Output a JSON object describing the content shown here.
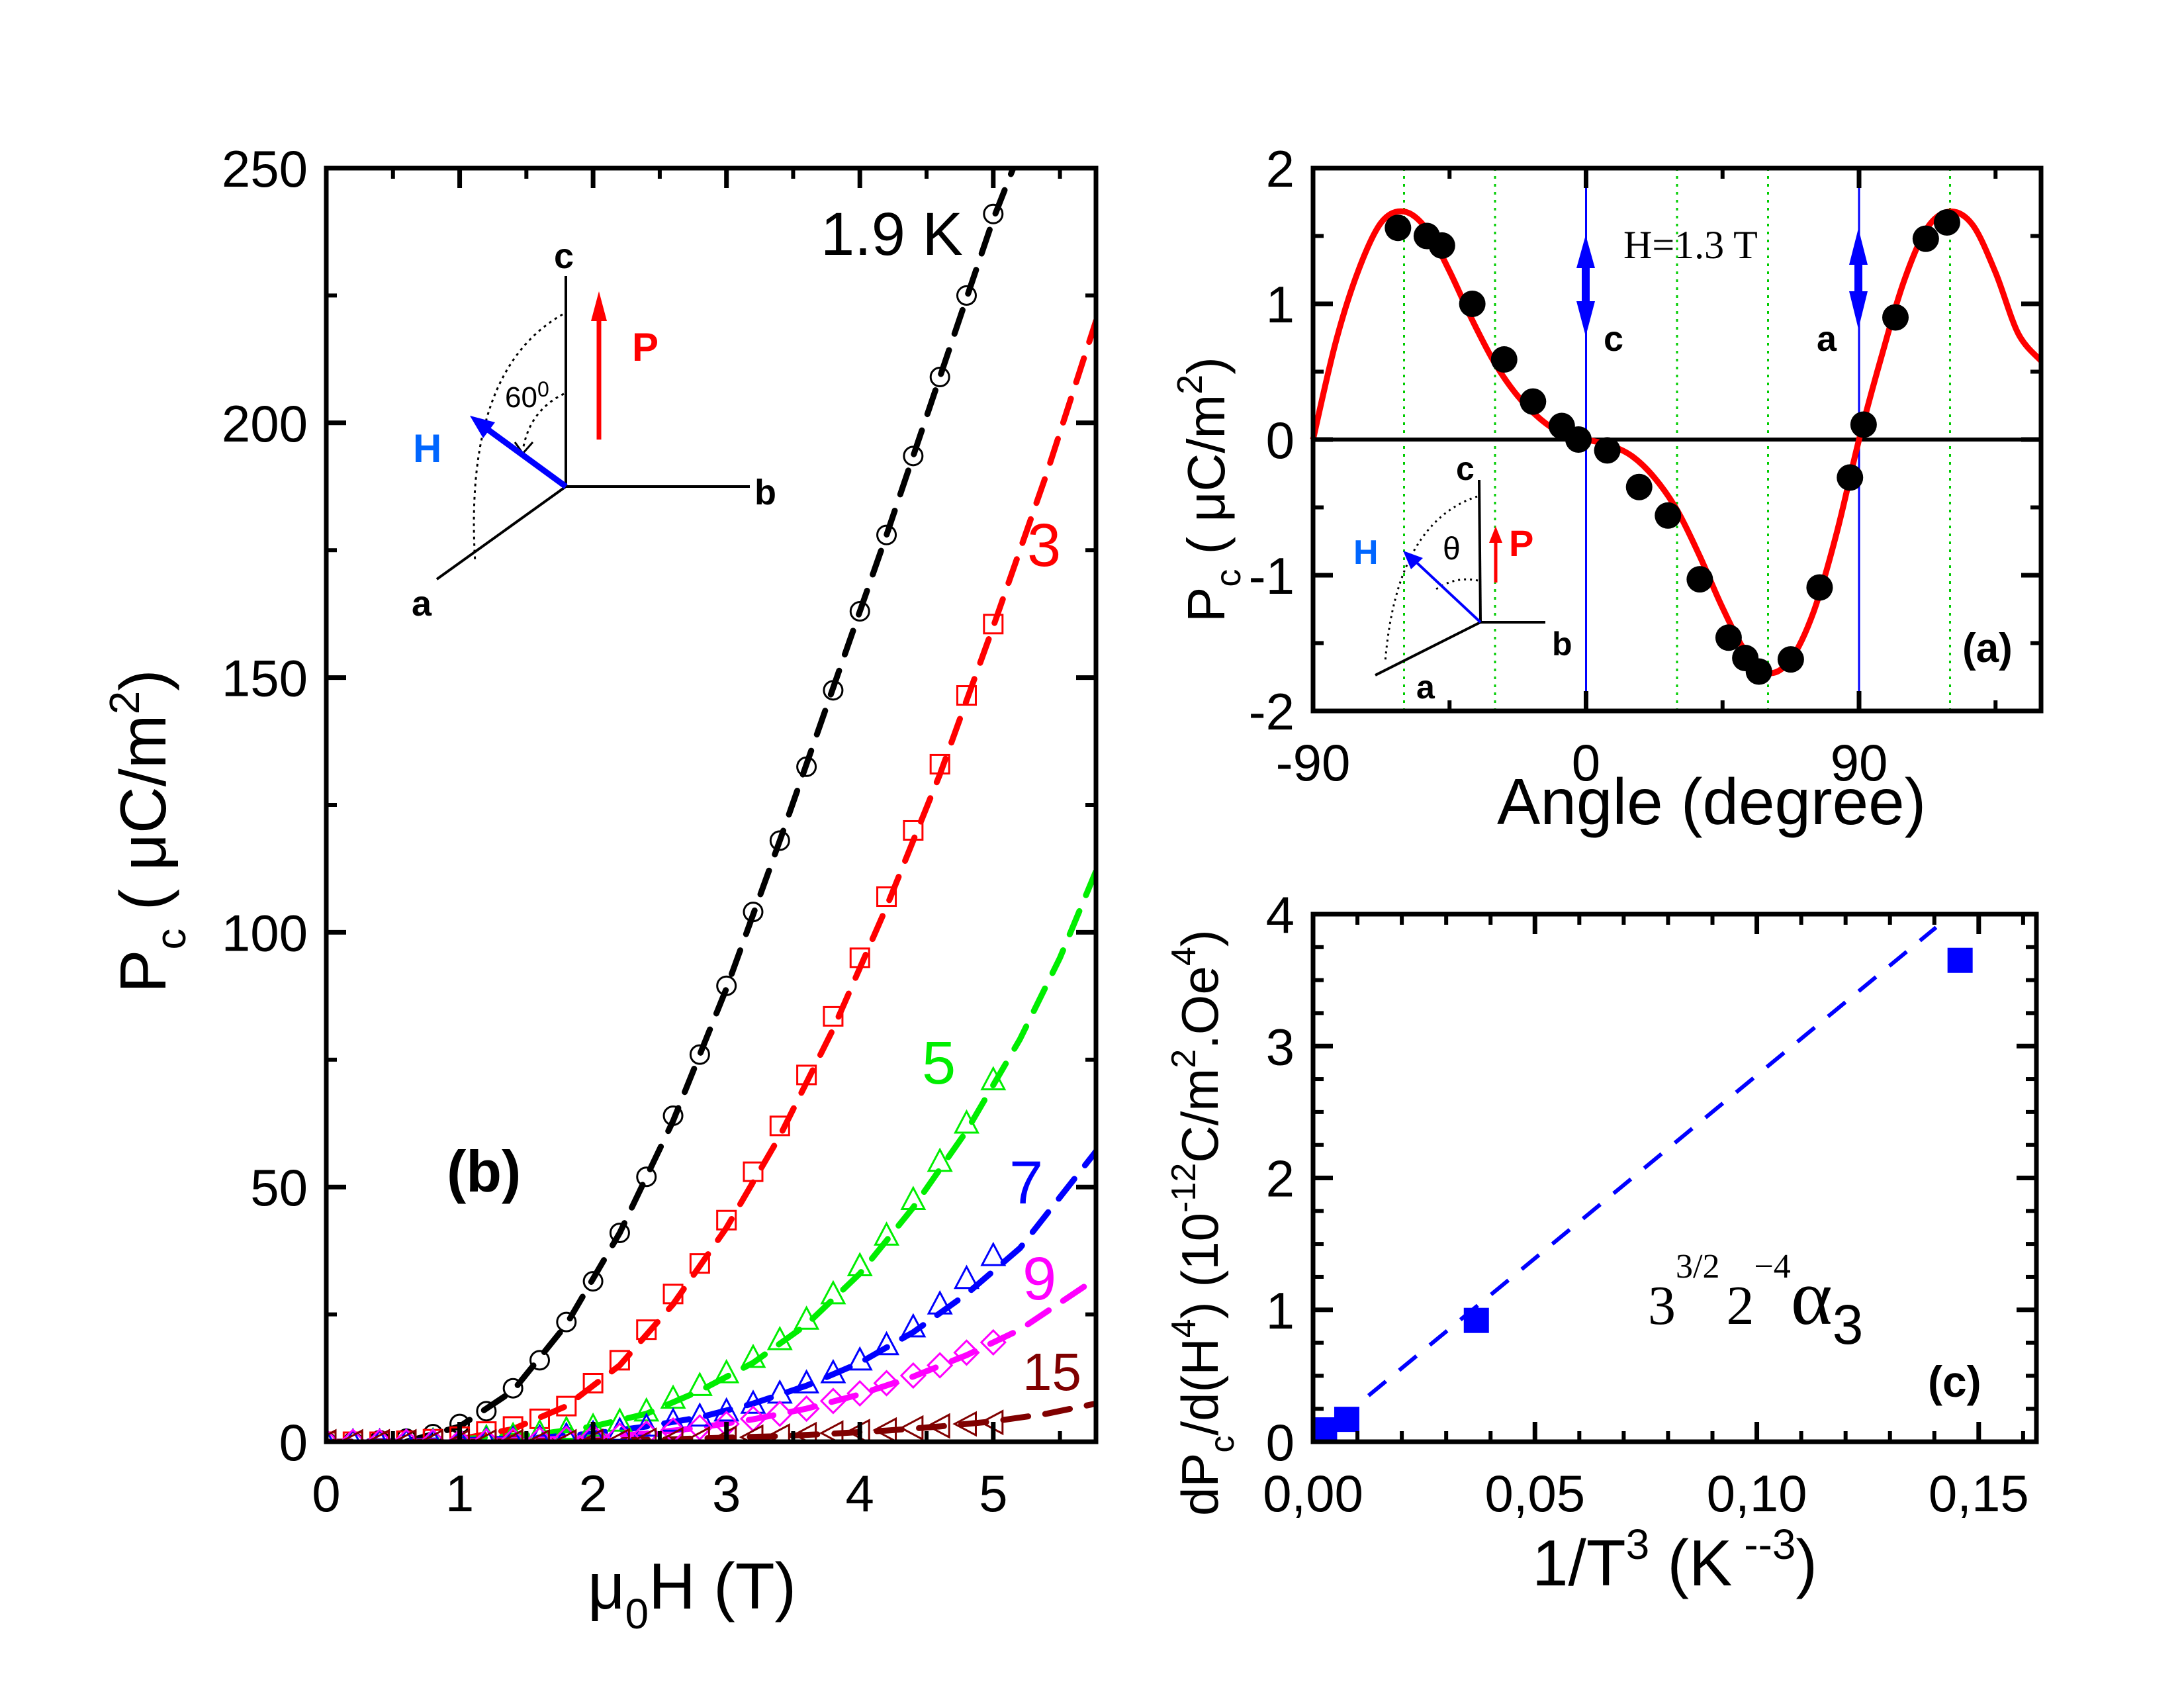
{
  "figure": {
    "panel_b": {
      "label": "(b)",
      "title": "",
      "xlabel": {
        "mu": "μ",
        "sub": "0",
        "main": "H (T)"
      },
      "ylabel": {
        "main": "P",
        "sub": "c",
        "unit": " ( μC/m",
        "sup": "2",
        "close": ")"
      },
      "x_ticks": [
        "0",
        "1",
        "2",
        "3",
        "4",
        "5"
      ],
      "y_ticks": [
        "0",
        "50",
        "100",
        "150",
        "200",
        "250"
      ],
      "series_labels": [
        "1.9 K",
        "3",
        "5",
        "7",
        "9",
        "15"
      ],
      "inset": {
        "c": "c",
        "b": "b",
        "a": "a",
        "H": "H",
        "P": "P",
        "angle": "60",
        "angle_sup": "0"
      }
    },
    "panel_a": {
      "label": "(a)",
      "annotation": "H=1.3 T",
      "axis_c_label": "c",
      "axis_a_label": "a",
      "xlabel": "Angle (degree)",
      "ylabel": {
        "main": "P",
        "sub": "c",
        "unit": " ( μC/m",
        "sup": "2",
        "close": ")"
      },
      "x_ticks": [
        "-90",
        "0",
        "90"
      ],
      "y_ticks": [
        "-2",
        "-1",
        "0",
        "1",
        "2"
      ],
      "inset": {
        "c": "c",
        "b": "b",
        "a": "a",
        "H": "H",
        "P": "P",
        "angle": "θ"
      }
    },
    "panel_c": {
      "label": "(c)",
      "xlabel": {
        "main": "1/T",
        "sup": "3",
        "unit": " (K",
        "unit_sup": " --3",
        "close": ")"
      },
      "ylabel": {
        "pre": "dP",
        "sub": "c",
        "mid": "/d(H",
        "sup": "4",
        "mid2": ") (10",
        "sup2": "-12",
        "mid3": "C/m",
        "sup3": "2",
        "mid4": ".Oe",
        "sup4": "4",
        "close": ")"
      },
      "x_ticks": [
        "0,00",
        "0,05",
        "0,10",
        "0,15"
      ],
      "y_ticks": [
        "0",
        "1",
        "2",
        "3",
        "4"
      ],
      "formula": {
        "base1": "3",
        "exp1": "3/2",
        "base2": "2",
        "exp2": "−4",
        "alpha": "α",
        "alpha_sub": "3"
      }
    }
  },
  "colors": {
    "1.9K": "#000000",
    "3K": "#ff0000",
    "5K": "#00ee00",
    "7K": "#0000ff",
    "9K": "#ff00ff",
    "15K": "#800000",
    "fit_a": "#ff0000",
    "grid_a": "#00cc00",
    "axis_marker": "#0000ff",
    "H_label": "#0066ff",
    "panel_c_points": "#0000ff"
  },
  "chart_data": [
    {
      "id": "panel_b",
      "type": "scatter",
      "title": "",
      "xlabel": "μ0H (T)",
      "ylabel": "Pc ( μC/m2)",
      "xlim": [
        0,
        5.77
      ],
      "ylim": [
        0,
        250
      ],
      "x_ticks": [
        0,
        1,
        2,
        3,
        4,
        5
      ],
      "y_ticks": [
        0,
        50,
        100,
        150,
        200,
        250
      ],
      "grid": false,
      "legend": "inline labels",
      "series": [
        {
          "name": "1.9 K",
          "marker": "circle",
          "x": [
            0,
            0.2,
            0.4,
            0.6,
            0.8,
            1.0,
            1.2,
            1.4,
            1.6,
            1.8,
            2.0,
            2.2,
            2.4,
            2.6,
            2.8,
            3.0,
            3.2,
            3.4,
            3.6,
            3.8,
            4.0,
            4.2,
            4.4,
            4.6,
            4.8,
            5.0
          ],
          "y": [
            0,
            0,
            0.3,
            0.6,
            1.5,
            3.5,
            6,
            10.5,
            16,
            23.5,
            31.5,
            41,
            52,
            64,
            76,
            89.5,
            104,
            118,
            132.5,
            147.5,
            163,
            178,
            193.5,
            209,
            225,
            241
          ],
          "fit": {
            "x": [
              0.6,
              1.0,
              1.4,
              1.8,
              2.2,
              2.6,
              3.0,
              3.4,
              3.8,
              4.2,
              4.6,
              5.0,
              5.15
            ],
            "y": [
              0,
              3,
              10,
              23,
              41,
              63,
              89,
              118,
              148,
              178,
              209,
              240,
              250
            ]
          }
        },
        {
          "name": "3",
          "marker": "square",
          "x": [
            0,
            0.2,
            0.4,
            0.6,
            0.8,
            1.0,
            1.2,
            1.4,
            1.6,
            1.8,
            2.0,
            2.2,
            2.4,
            2.6,
            2.8,
            3.0,
            3.2,
            3.4,
            3.6,
            3.8,
            4.0,
            4.2,
            4.4,
            4.6,
            4.8,
            5.0
          ],
          "y": [
            0,
            0,
            0,
            0.2,
            0.5,
            1,
            2,
            3,
            4.5,
            7,
            11.5,
            16,
            22,
            29,
            35,
            43.5,
            53,
            62,
            72,
            83.5,
            95,
            107,
            120,
            133,
            146.5,
            160.5
          ],
          "fit": {
            "x": [
              1.0,
              1.4,
              1.8,
              2.2,
              2.6,
              3.0,
              3.4,
              3.8,
              4.2,
              4.6,
              5.0,
              5.4,
              5.77
            ],
            "y": [
              0.5,
              2.5,
              7,
              15,
              27,
              42,
              60,
              81,
              105,
              131,
              160,
              190,
              220
            ]
          }
        },
        {
          "name": "5",
          "marker": "triangle-up",
          "x": [
            0,
            0.2,
            0.4,
            0.6,
            0.8,
            1.0,
            1.2,
            1.4,
            1.6,
            1.8,
            2.0,
            2.2,
            2.4,
            2.6,
            2.8,
            3.0,
            3.2,
            3.4,
            3.6,
            3.8,
            4.0,
            4.2,
            4.4,
            4.6,
            4.8,
            5.0
          ],
          "y": [
            0,
            0,
            0,
            0,
            0.2,
            0.4,
            0.8,
            1.2,
            1.8,
            2.4,
            3,
            4,
            6,
            8.5,
            11,
            13.5,
            16.5,
            20,
            24,
            29,
            34.5,
            40.5,
            47.5,
            55,
            62.5,
            71
          ],
          "fit": {
            "x": [
              1.0,
              1.6,
              2.0,
              2.4,
              2.8,
              3.2,
              3.6,
              4.0,
              4.4,
              4.8,
              5.2,
              5.5,
              5.77
            ],
            "y": [
              0.5,
              1.5,
              3,
              5.5,
              10,
              15.5,
              23,
              33,
              46,
              61,
              79,
              95,
              112
            ]
          }
        },
        {
          "name": "7",
          "marker": "triangle-up",
          "x": [
            0,
            0.2,
            0.4,
            0.6,
            0.8,
            1.0,
            1.2,
            1.4,
            1.6,
            1.8,
            2.0,
            2.2,
            2.4,
            2.6,
            2.8,
            3.0,
            3.2,
            3.4,
            3.6,
            3.8,
            4.0,
            4.2,
            4.4,
            4.6,
            4.8,
            5.0
          ],
          "y": [
            0,
            0,
            0,
            0,
            0,
            0.2,
            0.3,
            0.5,
            0.8,
            1.2,
            1.6,
            2.2,
            3,
            4,
            5,
            6,
            7.5,
            9.5,
            11.5,
            13.5,
            16,
            19,
            22.5,
            27,
            32,
            36.5
          ],
          "fit": {
            "x": [
              0,
              1.0,
              1.6,
              2.0,
              2.4,
              2.8,
              3.2,
              3.6,
              4.0,
              4.4,
              4.8,
              5.2,
              5.77
            ],
            "y": [
              0,
              0.3,
              0.8,
              1.6,
              3,
              4.8,
              7.5,
              11,
              15.5,
              21.5,
              29,
              38,
              57
            ]
          }
        },
        {
          "name": "9",
          "marker": "diamond",
          "x": [
            0,
            0.2,
            0.4,
            0.6,
            0.8,
            1.0,
            1.2,
            1.4,
            1.6,
            1.8,
            2.0,
            2.2,
            2.4,
            2.6,
            2.8,
            3.0,
            3.2,
            3.4,
            3.6,
            3.8,
            4.0,
            4.2,
            4.4,
            4.6,
            4.8,
            5.0
          ],
          "y": [
            0,
            0,
            0,
            0,
            0,
            0,
            0.1,
            0.2,
            0.4,
            0.6,
            0.9,
            1.2,
            1.6,
            2.2,
            2.8,
            3.5,
            4.5,
            5.5,
            6.5,
            8,
            9.5,
            11.5,
            13,
            15,
            17.5,
            19.5
          ],
          "fit": {
            "x": [
              0,
              1.0,
              1.6,
              2.0,
              2.4,
              2.8,
              3.2,
              3.6,
              4.0,
              4.4,
              4.8,
              5.2,
              5.77
            ],
            "y": [
              0,
              0.1,
              0.4,
              0.9,
              1.6,
              2.8,
              4.4,
              6.5,
              9.3,
              12.8,
              17,
              22,
              32
            ]
          }
        },
        {
          "name": "15",
          "marker": "triangle-left",
          "x": [
            0,
            0.2,
            0.4,
            0.6,
            0.8,
            1.0,
            1.2,
            1.4,
            1.6,
            1.8,
            2.0,
            2.2,
            2.4,
            2.6,
            2.8,
            3.0,
            3.2,
            3.4,
            3.6,
            3.8,
            4.0,
            4.2,
            4.4,
            4.6,
            4.8,
            5.0
          ],
          "y": [
            0,
            0,
            0,
            0,
            0,
            0,
            0,
            0,
            0,
            0,
            0.1,
            0.2,
            0.3,
            0.4,
            0.5,
            0.7,
            0.9,
            1.1,
            1.4,
            1.7,
            2,
            2.3,
            2.7,
            3.1,
            3.5,
            3.8
          ],
          "fit": {
            "x": [
              0,
              1.0,
              2.0,
              2.6,
              3.0,
              3.4,
              3.8,
              4.2,
              4.6,
              5.0,
              5.4,
              5.77
            ],
            "y": [
              0,
              0,
              0.2,
              0.5,
              0.8,
              1.1,
              1.6,
              2.2,
              3,
              4,
              5.5,
              7.5
            ]
          }
        }
      ]
    },
    {
      "id": "panel_a",
      "type": "scatter",
      "title": "",
      "xlabel": "Angle (degree)",
      "ylabel": "Pc ( μC/m2)",
      "xlim": [
        -90,
        150
      ],
      "ylim": [
        -2,
        2
      ],
      "x_ticks": [
        -90,
        0,
        90
      ],
      "y_ticks": [
        -2,
        -1,
        0,
        1,
        2
      ],
      "grid": "vertical dotted every 30 degrees",
      "annotations": [
        "H=1.3 T",
        "c (at 0°)",
        "a (at 90°)"
      ],
      "series": [
        {
          "name": "data",
          "marker": "filled-circle",
          "x": [
            -62,
            -52.5,
            -47.5,
            -37.5,
            -27,
            -17.5,
            -8,
            -2.5,
            7,
            17.5,
            27,
            37.5,
            47,
            52.5,
            57,
            67.5,
            77,
            87,
            91.5,
            102,
            112,
            119
          ],
          "y": [
            1.56,
            1.5,
            1.43,
            1.0,
            0.59,
            0.28,
            0.1,
            0.0,
            -0.08,
            -0.35,
            -0.56,
            -1.03,
            -1.46,
            -1.61,
            -1.71,
            -1.62,
            -1.09,
            -0.28,
            0.11,
            0.9,
            1.48,
            1.6
          ]
        },
        {
          "name": "fit",
          "type": "line",
          "x": [
            -90,
            -82.5,
            -75,
            -67.5,
            -60,
            -52.5,
            -45,
            -37.5,
            -30,
            -22.5,
            -15,
            -7.5,
            0,
            7.5,
            15,
            22.5,
            30,
            37.5,
            45,
            52.5,
            60,
            67.5,
            75,
            82.5,
            90,
            97.5,
            105,
            112.5,
            120,
            127.5,
            135,
            142.5,
            150
          ],
          "y": [
            0,
            0.72,
            1.25,
            1.6,
            1.68,
            1.55,
            1.24,
            0.88,
            0.56,
            0.32,
            0.15,
            0.04,
            0,
            -0.04,
            -0.12,
            -0.28,
            -0.52,
            -0.86,
            -1.24,
            -1.56,
            -1.72,
            -1.62,
            -1.27,
            -0.7,
            0,
            0.62,
            1.18,
            1.56,
            1.68,
            1.58,
            1.23,
            0.78,
            0.58
          ]
        }
      ]
    },
    {
      "id": "panel_c",
      "type": "scatter",
      "title": "",
      "xlabel": "1/T3 (K --3)",
      "ylabel": "dPc/d(H4) (10-12C/m2.Oe4)",
      "xlim": [
        0,
        0.163
      ],
      "ylim": [
        0,
        4
      ],
      "x_ticks": [
        0,
        0.05,
        0.1,
        0.15
      ],
      "y_ticks": [
        0,
        1,
        2,
        3,
        4
      ],
      "grid": false,
      "series": [
        {
          "name": "data",
          "marker": "filled-square",
          "x": [
            0.0026,
            0.0076,
            0.0368,
            0.1458
          ],
          "y": [
            0.09,
            0.17,
            0.92,
            3.65
          ]
        },
        {
          "name": "linear fit",
          "type": "dashed-line",
          "x": [
            0.0125,
            0.1404
          ],
          "y": [
            0.35,
            3.9
          ]
        }
      ]
    }
  ]
}
